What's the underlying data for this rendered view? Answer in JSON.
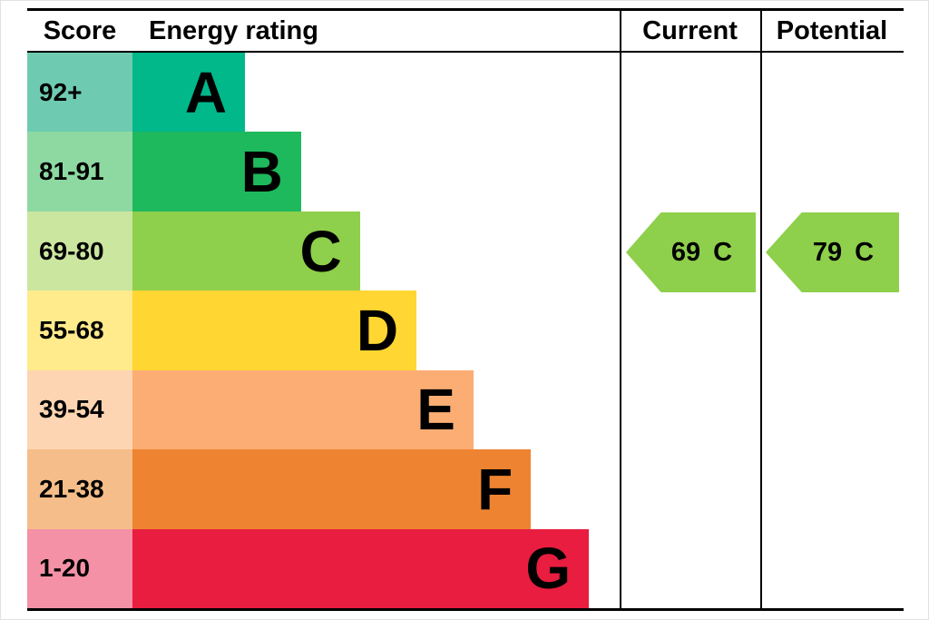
{
  "header": {
    "score": "Score",
    "rating": "Energy rating",
    "current": "Current",
    "potential": "Potential"
  },
  "bands": [
    {
      "score": "92+",
      "letter": "A",
      "bar_color": "#00b88a",
      "score_color": "#6ecbb1",
      "width_pct": 23.1
    },
    {
      "score": "81-91",
      "letter": "B",
      "bar_color": "#1eb95c",
      "score_color": "#8ed9a2",
      "width_pct": 34.6
    },
    {
      "score": "69-80",
      "letter": "C",
      "bar_color": "#8ecf4b",
      "score_color": "#cbe69f",
      "width_pct": 46.7
    },
    {
      "score": "55-68",
      "letter": "D",
      "bar_color": "#ffd632",
      "score_color": "#ffeb8c",
      "width_pct": 58.3
    },
    {
      "score": "39-54",
      "letter": "E",
      "bar_color": "#fbad74",
      "score_color": "#fdd5b2",
      "width_pct": 70.0
    },
    {
      "score": "21-38",
      "letter": "F",
      "bar_color": "#ee8432",
      "score_color": "#f5bd89",
      "width_pct": 81.8
    },
    {
      "score": "1-20",
      "letter": "G",
      "bar_color": "#e91d3f",
      "score_color": "#f491a6",
      "width_pct": 93.7
    }
  ],
  "current": {
    "value": "69",
    "letter": "C",
    "color": "#8ecf4b"
  },
  "potential": {
    "value": "79",
    "letter": "C",
    "color": "#8ecf4b"
  },
  "chart_data": {
    "type": "bar",
    "title": "Energy rating",
    "categories": [
      "A",
      "B",
      "C",
      "D",
      "E",
      "F",
      "G"
    ],
    "score_ranges": [
      "92+",
      "81-91",
      "69-80",
      "55-68",
      "39-54",
      "21-38",
      "1-20"
    ],
    "bar_widths_relative_pct": [
      23.1,
      34.6,
      46.7,
      58.3,
      70.0,
      81.8,
      93.7
    ],
    "columns": [
      "Score",
      "Energy rating",
      "Current",
      "Potential"
    ],
    "current": {
      "score": 69,
      "rating": "C"
    },
    "potential": {
      "score": 79,
      "rating": "C"
    },
    "legend_position": "none",
    "grid": false
  }
}
